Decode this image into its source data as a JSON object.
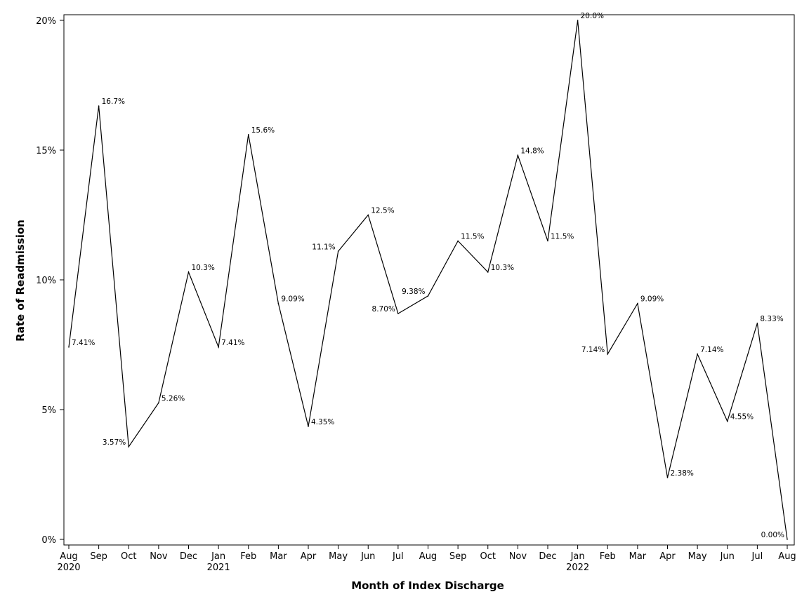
{
  "chart_data": {
    "type": "line",
    "title": "",
    "xlabel": "Month of Index Discharge",
    "ylabel": "Rate of Readmission",
    "ylim": [
      0,
      20
    ],
    "yticks": [
      0,
      5,
      10,
      15,
      20
    ],
    "ytick_labels": [
      "0%",
      "5%",
      "10%",
      "15%",
      "20%"
    ],
    "categories": [
      "Aug",
      "Sep",
      "Oct",
      "Nov",
      "Dec",
      "Jan",
      "Feb",
      "Mar",
      "Apr",
      "May",
      "Jun",
      "Jul",
      "Aug",
      "Sep",
      "Oct",
      "Nov",
      "Dec",
      "Jan",
      "Feb",
      "Mar",
      "Apr",
      "May",
      "Jun",
      "Jul",
      "Aug"
    ],
    "year_labels": [
      {
        "index": 0,
        "label": "2020"
      },
      {
        "index": 5,
        "label": "2021"
      },
      {
        "index": 17,
        "label": "2022"
      }
    ],
    "values": [
      7.41,
      16.7,
      3.57,
      5.26,
      10.3,
      7.41,
      15.6,
      9.09,
      4.35,
      11.1,
      12.5,
      8.7,
      9.38,
      11.5,
      10.3,
      14.8,
      11.5,
      20.0,
      7.14,
      9.09,
      2.38,
      7.14,
      4.55,
      8.33,
      0.0
    ],
    "value_labels": [
      "7.41%",
      "16.7%",
      "3.57%",
      "5.26%",
      "10.3%",
      "7.41%",
      "15.6%",
      "9.09%",
      "4.35%",
      "11.1%",
      "12.5%",
      "8.70%",
      "9.38%",
      "11.5%",
      "10.3%",
      "14.8%",
      "11.5%",
      "20.0%",
      "7.14%",
      "9.09%",
      "2.38%",
      "7.14%",
      "4.55%",
      "8.33%",
      "0.00%"
    ],
    "label_sides": [
      "right",
      "right",
      "left",
      "right",
      "right",
      "right",
      "right",
      "right",
      "right",
      "left",
      "right",
      "left",
      "left",
      "right",
      "right",
      "right",
      "right",
      "right",
      "left",
      "right",
      "right",
      "right",
      "right",
      "right",
      "left"
    ],
    "line_color": "#000000",
    "grid": false
  }
}
